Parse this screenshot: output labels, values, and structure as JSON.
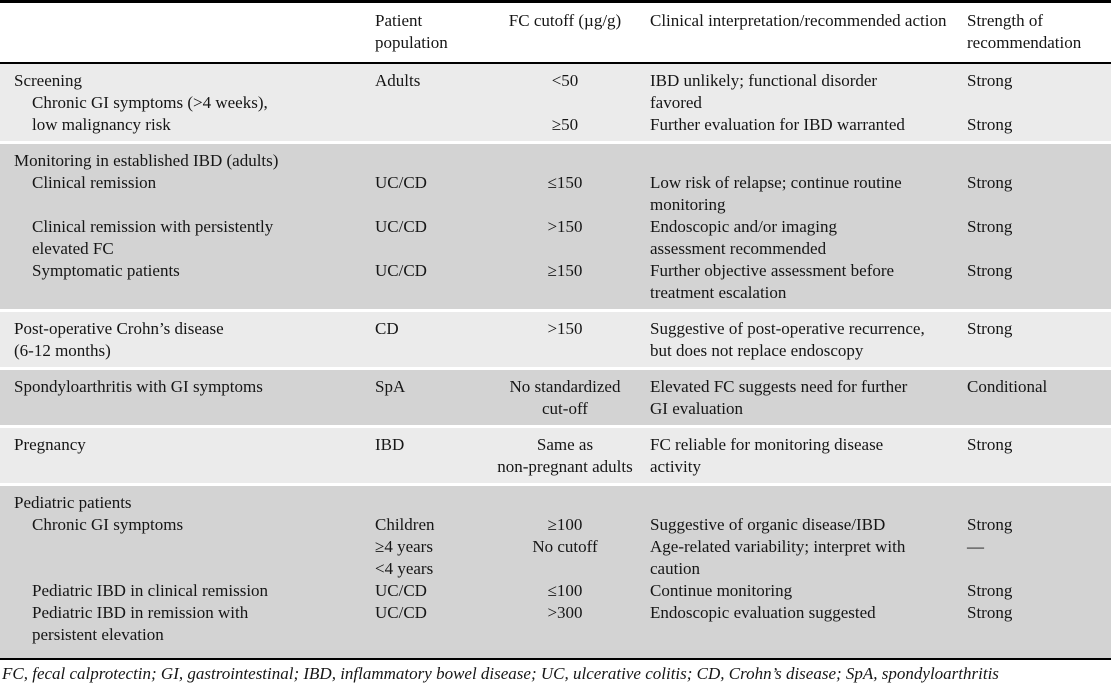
{
  "colors": {
    "band_light": "#ebebeb",
    "band_dark": "#d3d3d3",
    "rule": "#000000",
    "page_bg": "#ffffff",
    "text": "#161616"
  },
  "header": {
    "columns": [
      "",
      "Patient population",
      "FC cutoff (µg/g)",
      "Clinical interpretation/recommended action",
      "Strength of recommendation"
    ]
  },
  "sections": [
    {
      "name": "screening",
      "shade": "light",
      "lines": [
        {
          "indent": 0,
          "c1": "Screening",
          "c2": "Adults",
          "c3": "<50",
          "c4": "IBD unlikely; functional disorder",
          "c5": "Strong"
        },
        {
          "indent": 1,
          "c1": "Chronic GI symptoms (>4 weeks),",
          "c2": "",
          "c3": "",
          "c4": "favored",
          "c5": ""
        },
        {
          "indent": 1,
          "c1": "low malignancy risk",
          "c2": "",
          "c3": "≥50",
          "c4": "Further evaluation for IBD warranted",
          "c5": "Strong"
        }
      ]
    },
    {
      "name": "monitoring-established-ibd",
      "shade": "dark",
      "lines": [
        {
          "indent": 0,
          "c1": "Monitoring in established IBD (adults)",
          "c2": "",
          "c3": "",
          "c4": "",
          "c5": ""
        },
        {
          "indent": 1,
          "c1": "Clinical remission",
          "c2": "UC/CD",
          "c3": "≤150",
          "c4": "Low risk of relapse; continue routine",
          "c5": "Strong"
        },
        {
          "indent": 1,
          "c1": "",
          "c2": "",
          "c3": "",
          "c4": "monitoring",
          "c5": ""
        },
        {
          "indent": 1,
          "c1": "Clinical remission with persistently",
          "c2": "UC/CD",
          "c3": ">150",
          "c4": "Endoscopic and/or imaging",
          "c5": "Strong"
        },
        {
          "indent": 1,
          "c1": "elevated FC",
          "c2": "",
          "c3": "",
          "c4": "assessment recommended",
          "c5": ""
        },
        {
          "indent": 1,
          "c1": "Symptomatic patients",
          "c2": "UC/CD",
          "c3": "≥150",
          "c4": "Further objective assessment before",
          "c5": "Strong"
        },
        {
          "indent": 1,
          "c1": "",
          "c2": "",
          "c3": "",
          "c4": "treatment escalation",
          "c5": ""
        }
      ]
    },
    {
      "name": "post-operative-crohns-disease",
      "shade": "light",
      "lines": [
        {
          "indent": 0,
          "c1": "Post-operative Crohn’s disease",
          "c2": "CD",
          "c3": ">150",
          "c4": "Suggestive of post-operative recurrence,",
          "c5": "Strong"
        },
        {
          "indent": 0,
          "c1": "(6-12 months)",
          "c2": "",
          "c3": "",
          "c4": "but does not replace endoscopy",
          "c5": ""
        }
      ]
    },
    {
      "name": "spondyloarthritis-with-gi-symptoms",
      "shade": "dark",
      "lines": [
        {
          "indent": 0,
          "c1": "Spondyloarthritis with GI symptoms",
          "c2": "SpA",
          "c3": "No standardized",
          "c4": "Elevated FC suggests need for further",
          "c5": "Conditional"
        },
        {
          "indent": 0,
          "c1": "",
          "c2": "",
          "c3": "cut-off",
          "c4": "GI evaluation",
          "c5": ""
        }
      ]
    },
    {
      "name": "pregnancy",
      "shade": "light",
      "lines": [
        {
          "indent": 0,
          "c1": "Pregnancy",
          "c2": "IBD",
          "c3": "Same as",
          "c4": "FC reliable for monitoring disease",
          "c5": "Strong"
        },
        {
          "indent": 0,
          "c1": "",
          "c2": "",
          "c3": "non-pregnant adults",
          "c4": "activity",
          "c5": ""
        }
      ]
    },
    {
      "name": "pediatric-patients",
      "shade": "dark",
      "lines": [
        {
          "indent": 0,
          "c1": "Pediatric patients",
          "c2": "",
          "c3": "",
          "c4": "",
          "c5": ""
        },
        {
          "indent": 1,
          "c1": "Chronic GI symptoms",
          "c2": "Children",
          "c3": "≥100",
          "c4": "Suggestive of organic disease/IBD",
          "c5": "Strong"
        },
        {
          "indent": 1,
          "c1": "",
          "c2": "≥4 years",
          "c3": "No cutoff",
          "c4": "Age-related variability; interpret with",
          "c5": "—"
        },
        {
          "indent": 1,
          "c1": "",
          "c2": "<4 years",
          "c3": "",
          "c4": "caution",
          "c5": ""
        },
        {
          "indent": 1,
          "c1": "Pediatric IBD in clinical remission",
          "c2": "UC/CD",
          "c3": "≤100",
          "c4": "Continue monitoring",
          "c5": "Strong"
        },
        {
          "indent": 1,
          "c1": "Pediatric IBD in remission with",
          "c2": "UC/CD",
          "c3": ">300",
          "c4": "Endoscopic evaluation suggested",
          "c5": "Strong"
        },
        {
          "indent": 1,
          "c1": "persistent elevation",
          "c2": "",
          "c3": "",
          "c4": "",
          "c5": ""
        }
      ]
    }
  ],
  "footnote": "FC, fecal calprotectin; GI, gastrointestinal; IBD, inflammatory bowel disease; UC, ulcerative colitis; CD, Crohn’s disease; SpA, spondyloarthritis"
}
